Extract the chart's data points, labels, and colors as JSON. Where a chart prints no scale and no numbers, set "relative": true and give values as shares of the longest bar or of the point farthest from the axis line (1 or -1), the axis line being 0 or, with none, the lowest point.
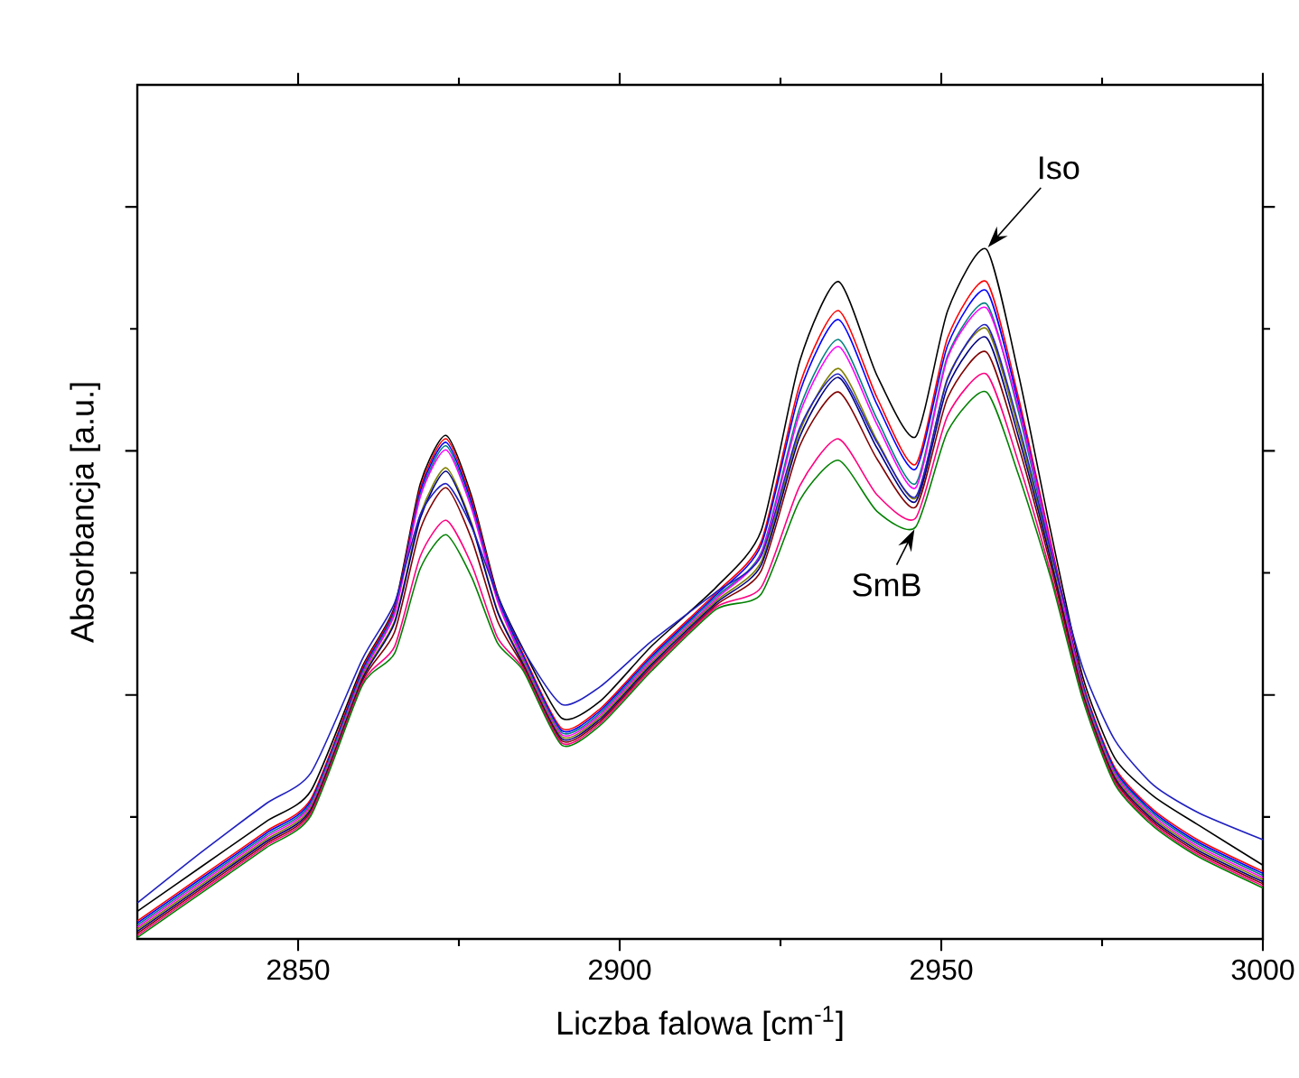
{
  "chart_data": {
    "type": "line",
    "relative": true,
    "xlabel": "Liczba falowa [cm$^{-1}$]",
    "ylabel": "Absorbancja [a.u.]",
    "xlim": [
      2825,
      3000
    ],
    "xticks": [
      2850,
      2900,
      2950,
      3000
    ],
    "x": [
      2825,
      2835,
      2845,
      2852,
      2860,
      2865,
      2869,
      2873,
      2877,
      2881,
      2885,
      2891,
      2897,
      2905,
      2915,
      2922,
      2928,
      2934,
      2940,
      2946,
      2951,
      2957,
      2962,
      2967,
      2972,
      2977,
      2983,
      2990,
      3000
    ],
    "series": [
      {
        "color": "#000000",
        "values": [
          0.04,
          0.105,
          0.17,
          0.215,
          0.395,
          0.482,
          0.66,
          0.73,
          0.641,
          0.5,
          0.42,
          0.32,
          0.345,
          0.425,
          0.51,
          0.592,
          0.838,
          0.953,
          0.817,
          0.728,
          0.911,
          1.0,
          0.819,
          0.592,
          0.38,
          0.262,
          0.207,
          0.165,
          0.107
        ]
      },
      {
        "color": "#ff0000",
        "values": [
          0.026,
          0.091,
          0.156,
          0.203,
          0.392,
          0.479,
          0.654,
          0.725,
          0.636,
          0.497,
          0.413,
          0.305,
          0.334,
          0.413,
          0.502,
          0.576,
          0.804,
          0.911,
          0.785,
          0.688,
          0.872,
          0.953,
          0.785,
          0.576,
          0.371,
          0.248,
          0.187,
          0.143,
          0.098
        ]
      },
      {
        "color": "#0000ff",
        "values": [
          0.023,
          0.088,
          0.153,
          0.2,
          0.389,
          0.476,
          0.649,
          0.72,
          0.631,
          0.495,
          0.41,
          0.302,
          0.331,
          0.41,
          0.499,
          0.571,
          0.793,
          0.898,
          0.775,
          0.681,
          0.861,
          0.94,
          0.777,
          0.571,
          0.368,
          0.245,
          0.184,
          0.14,
          0.095
        ]
      },
      {
        "color": "#008080",
        "values": [
          0.02,
          0.085,
          0.15,
          0.197,
          0.386,
          0.474,
          0.644,
          0.715,
          0.626,
          0.492,
          0.407,
          0.299,
          0.328,
          0.407,
          0.496,
          0.56,
          0.77,
          0.869,
          0.754,
          0.66,
          0.846,
          0.921,
          0.764,
          0.565,
          0.365,
          0.242,
          0.181,
          0.137,
          0.092
        ]
      },
      {
        "color": "#ff00ff",
        "values": [
          0.017,
          0.082,
          0.147,
          0.194,
          0.383,
          0.471,
          0.641,
          0.709,
          0.623,
          0.49,
          0.404,
          0.296,
          0.325,
          0.404,
          0.493,
          0.558,
          0.762,
          0.859,
          0.746,
          0.654,
          0.843,
          0.915,
          0.77,
          0.57,
          0.362,
          0.239,
          0.178,
          0.134,
          0.089
        ]
      },
      {
        "color": "#808000",
        "values": [
          0.014,
          0.079,
          0.144,
          0.191,
          0.38,
          0.461,
          0.615,
          0.683,
          0.602,
          0.476,
          0.401,
          0.293,
          0.322,
          0.401,
          0.49,
          0.547,
          0.736,
          0.827,
          0.723,
          0.639,
          0.814,
          0.885,
          0.738,
          0.555,
          0.359,
          0.236,
          0.175,
          0.131,
          0.086
        ]
      },
      {
        "color": "#000080",
        "values": [
          0.011,
          0.076,
          0.141,
          0.188,
          0.377,
          0.458,
          0.61,
          0.678,
          0.599,
          0.474,
          0.398,
          0.29,
          0.319,
          0.398,
          0.487,
          0.542,
          0.728,
          0.814,
          0.712,
          0.634,
          0.801,
          0.872,
          0.728,
          0.55,
          0.356,
          0.233,
          0.172,
          0.128,
          0.083
        ]
      },
      {
        "color": "#2020c0",
        "values": [
          0.052,
          0.126,
          0.196,
          0.241,
          0.406,
          0.487,
          0.615,
          0.66,
          0.597,
          0.497,
          0.419,
          0.34,
          0.366,
          0.432,
          0.503,
          0.555,
          0.741,
          0.819,
          0.72,
          0.641,
          0.812,
          0.89,
          0.746,
          0.563,
          0.393,
          0.288,
          0.223,
          0.183,
          0.144
        ]
      },
      {
        "color": "#800000",
        "values": [
          0.008,
          0.073,
          0.138,
          0.185,
          0.374,
          0.445,
          0.594,
          0.654,
          0.579,
          0.461,
          0.395,
          0.287,
          0.316,
          0.395,
          0.484,
          0.534,
          0.715,
          0.793,
          0.696,
          0.626,
          0.785,
          0.851,
          0.715,
          0.542,
          0.353,
          0.23,
          0.169,
          0.125,
          0.08
        ]
      },
      {
        "color": "#ff0080",
        "values": [
          0.005,
          0.07,
          0.135,
          0.182,
          0.371,
          0.424,
          0.555,
          0.607,
          0.542,
          0.437,
          0.392,
          0.284,
          0.313,
          0.392,
          0.481,
          0.51,
          0.657,
          0.725,
          0.644,
          0.61,
          0.759,
          0.819,
          0.691,
          0.531,
          0.35,
          0.227,
          0.166,
          0.122,
          0.077
        ]
      },
      {
        "color": "#008000",
        "values": [
          0.002,
          0.067,
          0.132,
          0.179,
          0.368,
          0.414,
          0.537,
          0.586,
          0.524,
          0.429,
          0.389,
          0.281,
          0.31,
          0.389,
          0.478,
          0.5,
          0.636,
          0.694,
          0.62,
          0.597,
          0.736,
          0.793,
          0.673,
          0.524,
          0.347,
          0.224,
          0.163,
          0.119,
          0.074
        ]
      }
    ],
    "annotations": [
      {
        "text": "Iso",
        "x": 2957,
        "y": 1.0
      },
      {
        "text": "SmB",
        "x": 2946,
        "y": 0.597
      }
    ]
  }
}
